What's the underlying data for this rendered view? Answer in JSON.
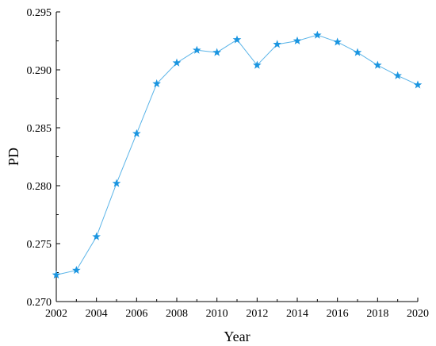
{
  "chart_data": {
    "type": "line",
    "title": "",
    "xlabel": "Year",
    "ylabel": "PD",
    "xlim": [
      2002,
      2020
    ],
    "ylim": [
      0.27,
      0.295
    ],
    "x_ticks": [
      "2002",
      "2004",
      "2006",
      "2008",
      "2010",
      "2012",
      "2014",
      "2016",
      "2018",
      "2020"
    ],
    "y_ticks": [
      "0.270",
      "0.275",
      "0.280",
      "0.285",
      "0.290",
      "0.295"
    ],
    "grid": false,
    "legend": "none",
    "marker": "star",
    "line_color": "#5ab4e8",
    "marker_color": "#1a95e0",
    "series": [
      {
        "x": [
          2002,
          2003,
          2004,
          2005,
          2006,
          2007,
          2008,
          2009,
          2010,
          2011,
          2012,
          2013,
          2014,
          2015,
          2016,
          2017,
          2018,
          2019,
          2020
        ],
        "values": [
          0.2723,
          0.2727,
          0.2756,
          0.2802,
          0.2845,
          0.2888,
          0.2906,
          0.2917,
          0.2915,
          0.2926,
          0.2904,
          0.2922,
          0.2925,
          0.293,
          0.2924,
          0.2915,
          0.2904,
          0.2895,
          0.2887
        ]
      }
    ]
  }
}
